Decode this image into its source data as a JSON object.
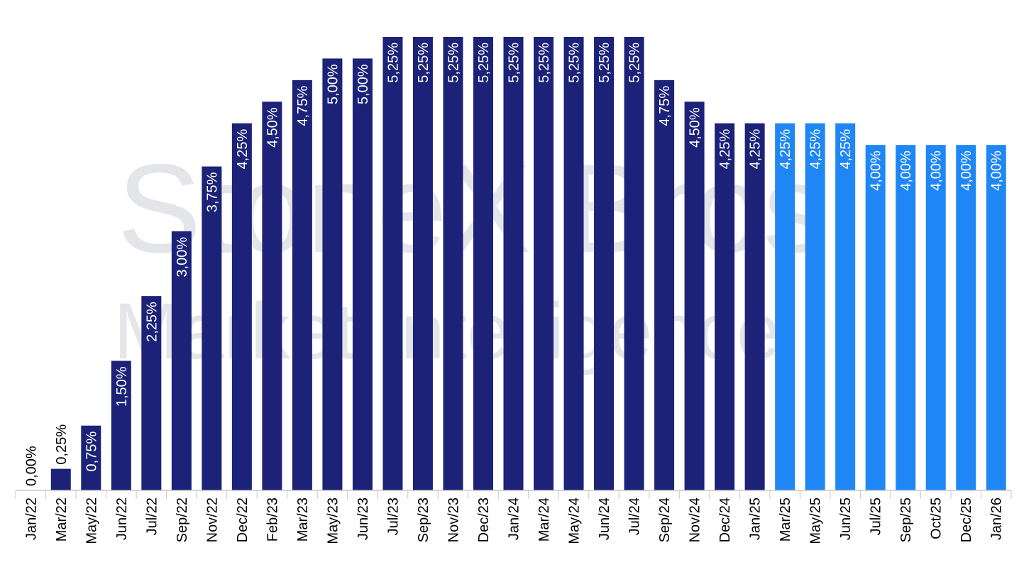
{
  "watermark": {
    "line1": "StoneX Bros",
    "line2": "Market Intelligence"
  },
  "colors": {
    "historical": "#1b2278",
    "projected": "#1f87f5",
    "axis": "#c9c9c9",
    "tick": "#000000",
    "label_inside": "#ffffff",
    "label_outside": "#000000"
  },
  "chart_data": {
    "type": "bar",
    "title": "",
    "xlabel": "",
    "ylabel": "",
    "ylim": [
      0,
      5.25
    ],
    "grid": false,
    "legend": "none",
    "categories": [
      "Jan/22",
      "Mar/22",
      "May/22",
      "Jun/22",
      "Jul/22",
      "Sep/22",
      "Nov/22",
      "Dec/22",
      "Feb/23",
      "Mar/23",
      "May/23",
      "Jun/23",
      "Jul/23",
      "Sep/23",
      "Nov/23",
      "Dec/23",
      "Jan/24",
      "Mar/24",
      "May/24",
      "Jun/24",
      "Jul/24",
      "Sep/24",
      "Nov/24",
      "Dec/24",
      "Jan/25",
      "Mar/25",
      "May/25",
      "Jun/25",
      "Jul/25",
      "Sep/25",
      "Oct/25",
      "Dec/25",
      "Jan/26"
    ],
    "values": [
      0.0,
      0.25,
      0.75,
      1.5,
      2.25,
      3.0,
      3.75,
      4.25,
      4.5,
      4.75,
      5.0,
      5.0,
      5.25,
      5.25,
      5.25,
      5.25,
      5.25,
      5.25,
      5.25,
      5.25,
      5.25,
      4.75,
      4.5,
      4.25,
      4.25,
      4.25,
      4.25,
      4.25,
      4.0,
      4.0,
      4.0,
      4.0,
      4.0
    ],
    "data_labels": [
      "0,00%",
      "0,25%",
      "0,75%",
      "1,50%",
      "2,25%",
      "3,00%",
      "3,75%",
      "4,25%",
      "4,50%",
      "4,75%",
      "5,00%",
      "5,00%",
      "5,25%",
      "5,25%",
      "5,25%",
      "5,25%",
      "5,25%",
      "5,25%",
      "5,25%",
      "5,25%",
      "5,25%",
      "4,75%",
      "4,50%",
      "4,25%",
      "4,25%",
      "4,25%",
      "4,25%",
      "4,25%",
      "4,00%",
      "4,00%",
      "4,00%",
      "4,00%",
      "4,00%"
    ],
    "projected": [
      false,
      false,
      false,
      false,
      false,
      false,
      false,
      false,
      false,
      false,
      false,
      false,
      false,
      false,
      false,
      false,
      false,
      false,
      false,
      false,
      false,
      false,
      false,
      false,
      false,
      true,
      true,
      true,
      true,
      true,
      true,
      true,
      true
    ]
  }
}
